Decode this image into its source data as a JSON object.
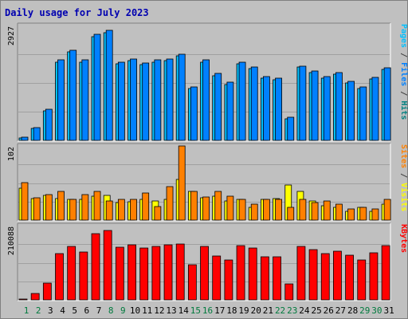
{
  "title": "Daily usage for July 2023",
  "colors": {
    "background": "#c0c0c0",
    "title": "#0000b0",
    "grid": "#a0a0a0",
    "weekend_day_label": "#007a3d",
    "weekday_label": "#000000"
  },
  "chart_data": [
    {
      "type": "bar",
      "panel": "top",
      "ymax_label": "2927",
      "ylim": [
        0,
        2927
      ],
      "categories": [
        "1",
        "2",
        "3",
        "4",
        "5",
        "6",
        "7",
        "8",
        "9",
        "10",
        "11",
        "12",
        "13",
        "14",
        "15",
        "16",
        "17",
        "18",
        "19",
        "20",
        "21",
        "22",
        "23",
        "24",
        "25",
        "26",
        "27",
        "28",
        "29",
        "30",
        "31"
      ],
      "weekend_days": [
        "1",
        "2",
        "8",
        "9",
        "15",
        "16",
        "22",
        "23",
        "29",
        "30"
      ],
      "series": [
        {
          "name": "Pages",
          "color": "#00c0ff",
          "values": [
            60,
            300,
            760,
            2000,
            2250,
            2000,
            2650,
            2750,
            1950,
            2030,
            1930,
            2000,
            2030,
            2150,
            1320,
            2000,
            1650,
            1430,
            1950,
            1830,
            1580,
            1550,
            550,
            1860,
            1720,
            1580,
            1680,
            1470,
            1330,
            1560,
            1800
          ]
        },
        {
          "name": "Files",
          "color": "#0080ff",
          "values": [
            80,
            330,
            800,
            2050,
            2300,
            2050,
            2700,
            2800,
            2000,
            2080,
            1980,
            2050,
            2080,
            2200,
            1360,
            2050,
            1700,
            1480,
            2000,
            1880,
            1620,
            1590,
            580,
            1900,
            1760,
            1620,
            1720,
            1510,
            1370,
            1600,
            1850
          ]
        }
      ],
      "right_labels": [
        {
          "text": "Pages",
          "color": "#00c0ff"
        },
        {
          "text": " / ",
          "color": "#404040"
        },
        {
          "text": "Files",
          "color": "#0080ff"
        },
        {
          "text": " / ",
          "color": "#404040"
        },
        {
          "text": "Hits",
          "color": "#008080"
        }
      ]
    },
    {
      "type": "bar",
      "panel": "middle",
      "ymax_label": "102",
      "ylim": [
        0,
        102
      ],
      "categories": [
        "1",
        "2",
        "3",
        "4",
        "5",
        "6",
        "7",
        "8",
        "9",
        "10",
        "11",
        "12",
        "13",
        "14",
        "15",
        "16",
        "17",
        "18",
        "19",
        "20",
        "21",
        "22",
        "23",
        "24",
        "25",
        "26",
        "27",
        "28",
        "29",
        "30",
        "31"
      ],
      "series": [
        {
          "name": "Visits",
          "color": "#ffff00",
          "values": [
            44,
            30,
            34,
            30,
            29,
            29,
            33,
            34,
            24,
            25,
            29,
            26,
            29,
            56,
            39,
            31,
            33,
            26,
            29,
            18,
            28,
            30,
            48,
            40,
            26,
            20,
            18,
            12,
            17,
            12,
            22
          ]
        },
        {
          "name": "Sites",
          "color": "#ff8000",
          "values": [
            52,
            31,
            35,
            39,
            29,
            35,
            39,
            26,
            28,
            29,
            37,
            19,
            46,
            102,
            40,
            32,
            40,
            33,
            29,
            22,
            29,
            29,
            18,
            28,
            24,
            26,
            22,
            15,
            17,
            15,
            29
          ]
        }
      ],
      "right_labels": [
        {
          "text": "Sites",
          "color": "#ff8000"
        },
        {
          "text": " / ",
          "color": "#404040"
        },
        {
          "text": "Visits",
          "color": "#ffff00"
        }
      ]
    },
    {
      "type": "bar",
      "panel": "bottom",
      "ymax_label": "210088",
      "ylim": [
        0,
        210088
      ],
      "categories": [
        "1",
        "2",
        "3",
        "4",
        "5",
        "6",
        "7",
        "8",
        "9",
        "10",
        "11",
        "12",
        "13",
        "14",
        "15",
        "16",
        "17",
        "18",
        "19",
        "20",
        "21",
        "22",
        "23",
        "24",
        "25",
        "26",
        "27",
        "28",
        "29",
        "30",
        "31"
      ],
      "series": [
        {
          "name": "KBytes",
          "color": "#ff0000",
          "values": [
            2000,
            19000,
            48000,
            131000,
            151000,
            136000,
            187000,
            197000,
            149000,
            155000,
            146000,
            152000,
            155000,
            158000,
            100000,
            151000,
            125000,
            112000,
            153000,
            147000,
            123000,
            123000,
            46000,
            151000,
            143000,
            130000,
            138000,
            126000,
            112000,
            133000,
            153000
          ]
        }
      ],
      "right_labels": [
        {
          "text": "KBytes",
          "color": "#ff0000"
        }
      ]
    }
  ]
}
